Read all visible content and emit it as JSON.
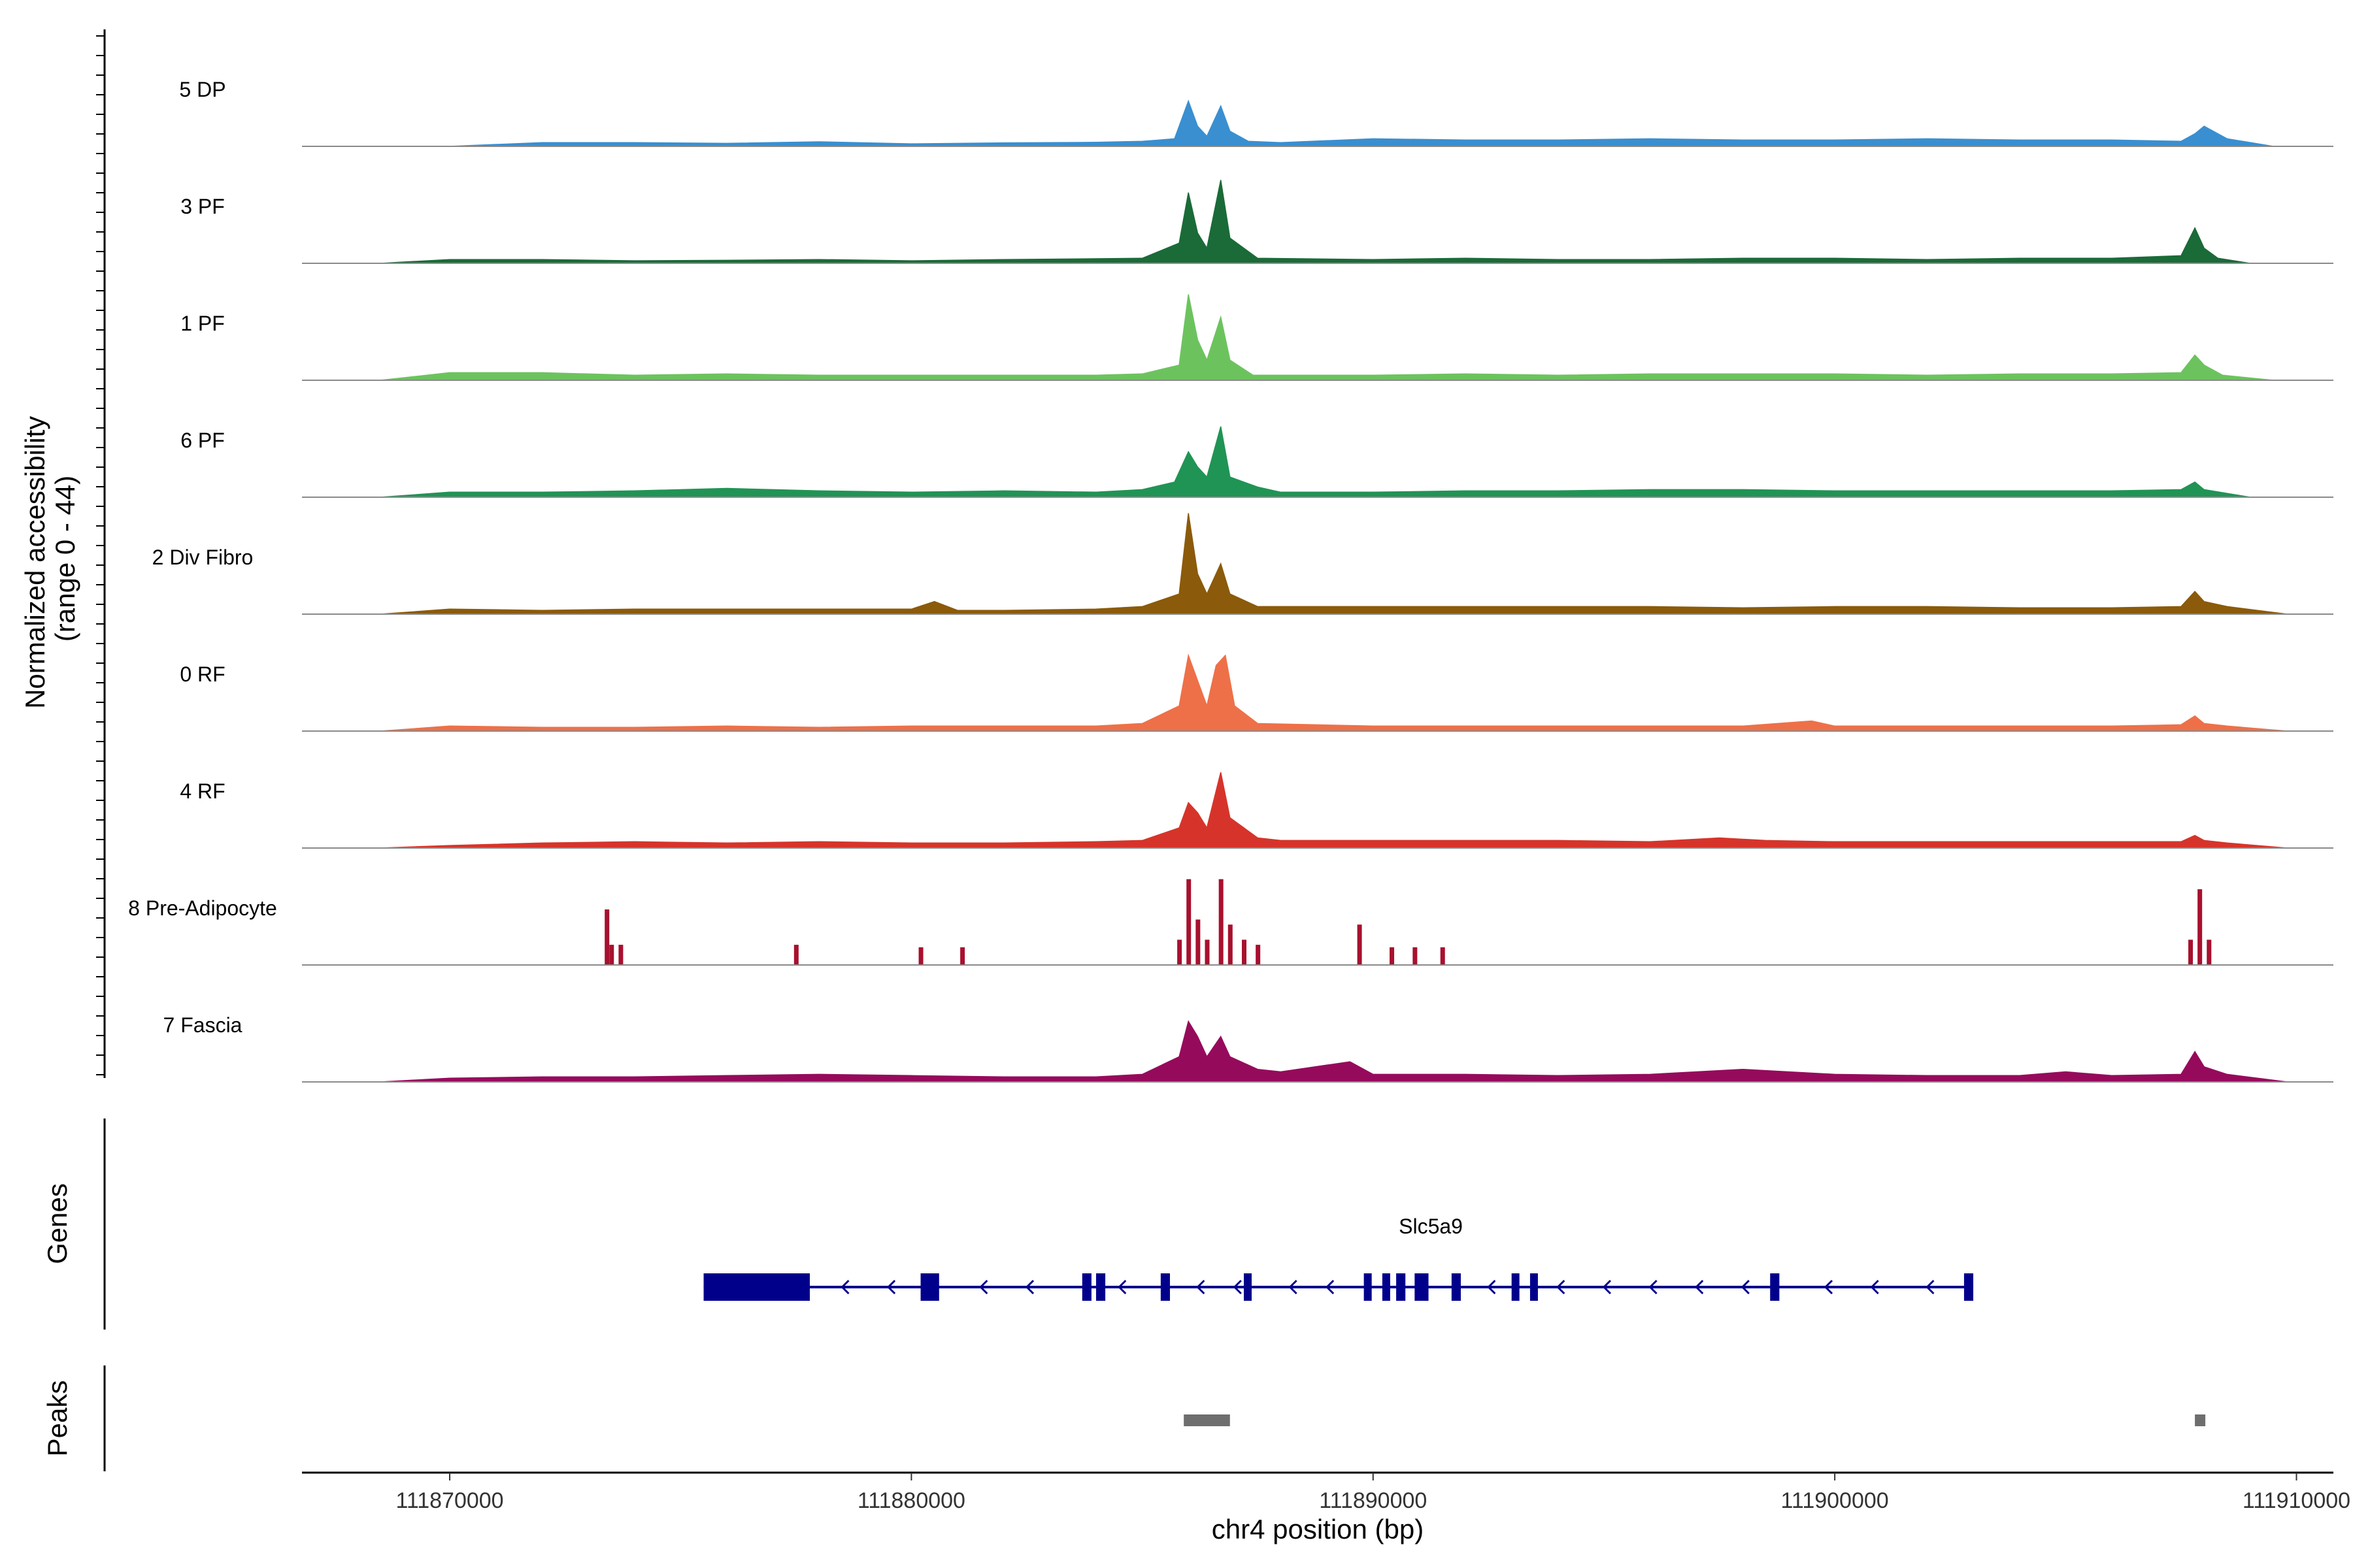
{
  "chart_data": {
    "type": "area",
    "title": "",
    "xlabel": "chr4 position (bp)",
    "ylabel": "Normalized accessibility",
    "ylabel_range": "(range 0 - 44)",
    "ylim": [
      0,
      44
    ],
    "xlim": [
      111866800,
      111910800
    ],
    "x_ticks": [
      111870000,
      111880000,
      111890000,
      111900000,
      111910000
    ],
    "x_tick_labels": [
      "111870000",
      "111880000",
      "111890000",
      "111900000",
      "111910000"
    ],
    "series": [
      {
        "name": "5 DP",
        "color": "#3a8fd0",
        "x": [
          111870000,
          111872000,
          111874000,
          111876000,
          111878000,
          111880000,
          111882000,
          111884000,
          111885000,
          111885700,
          111886000,
          111886200,
          111886400,
          111886700,
          111886900,
          111887300,
          111888000,
          111890000,
          111892000,
          111894000,
          111896000,
          111898000,
          111900000,
          111902000,
          111904000,
          111906000,
          111907500,
          111907800,
          111908000,
          111908500,
          111909500
        ],
        "values": [
          0,
          1.5,
          1.5,
          1.2,
          1.8,
          1,
          1.4,
          1.6,
          2,
          3,
          18,
          8,
          4,
          16,
          6,
          2,
          1.5,
          3,
          2.5,
          2.5,
          3,
          2.5,
          2.5,
          3,
          2.5,
          2.5,
          2,
          5,
          8,
          3,
          0
        ]
      },
      {
        "name": "3 PF",
        "color": "#1a6b38",
        "x": [
          111868500,
          111870000,
          111872000,
          111874000,
          111876000,
          111878000,
          111880000,
          111882000,
          111884000,
          111885000,
          111885800,
          111886000,
          111886200,
          111886400,
          111886700,
          111886900,
          111887500,
          111890000,
          111892000,
          111894000,
          111896000,
          111898000,
          111900000,
          111902000,
          111904000,
          111906000,
          111907500,
          111907800,
          111908000,
          111908300,
          111909000
        ],
        "values": [
          0,
          1.5,
          1.5,
          1,
          1.2,
          1.5,
          1,
          1.5,
          1.8,
          2,
          8,
          28,
          12,
          6,
          33,
          10,
          2,
          1.5,
          2,
          1.5,
          1.5,
          2,
          2,
          1.5,
          2,
          2,
          3,
          14,
          6,
          2,
          0
        ]
      },
      {
        "name": "1 PF",
        "color": "#6cc35e",
        "x": [
          111868500,
          111870000,
          111872000,
          111874000,
          111876000,
          111878000,
          111880000,
          111882000,
          111884000,
          111885000,
          111885800,
          111886000,
          111886200,
          111886400,
          111886700,
          111886900,
          111887400,
          111890000,
          111892000,
          111894000,
          111896000,
          111898000,
          111900000,
          111902000,
          111904000,
          111906000,
          111907500,
          111907800,
          111908000,
          111908400,
          111909500
        ],
        "values": [
          0,
          3,
          3,
          2,
          2.5,
          2,
          2,
          2,
          2,
          2.5,
          6,
          34,
          16,
          8,
          25,
          8,
          2,
          2,
          2.5,
          2,
          2.5,
          2.5,
          2.5,
          2,
          2.5,
          2.5,
          3,
          10,
          6,
          2,
          0
        ]
      },
      {
        "name": "6 PF",
        "color": "#209454",
        "x": [
          111868500,
          111870000,
          111872000,
          111874000,
          111876000,
          111878000,
          111880000,
          111882000,
          111884000,
          111885000,
          111885700,
          111886000,
          111886200,
          111886400,
          111886700,
          111886900,
          111887500,
          111888000,
          111890000,
          111892000,
          111894000,
          111896000,
          111898000,
          111900000,
          111902000,
          111904000,
          111906000,
          111907500,
          111907800,
          111908000,
          111909000
        ],
        "values": [
          0,
          2,
          2,
          2.5,
          3.5,
          2.5,
          2,
          2.5,
          2,
          3,
          6,
          18,
          12,
          8,
          28,
          8,
          4,
          2,
          2,
          2.5,
          2.5,
          3,
          3,
          2.5,
          2.5,
          2.5,
          2.5,
          3,
          6,
          3,
          0
        ]
      },
      {
        "name": "2 Div Fibro",
        "color": "#8b5a0a",
        "x": [
          111868500,
          111870000,
          111872000,
          111874000,
          111876000,
          111878000,
          111880000,
          111880500,
          111881000,
          111882000,
          111884000,
          111885000,
          111885800,
          111886000,
          111886200,
          111886400,
          111886700,
          111886900,
          111887500,
          111890000,
          111892000,
          111894000,
          111896000,
          111898000,
          111900000,
          111902000,
          111904000,
          111906000,
          111907500,
          111907800,
          111908000,
          111908500,
          111909800
        ],
        "values": [
          0,
          2,
          1.5,
          2,
          2,
          2,
          2,
          5,
          1.5,
          1.5,
          2,
          3,
          8,
          40,
          16,
          8,
          20,
          8,
          3,
          3,
          3,
          3,
          3,
          2.5,
          3,
          3,
          2.5,
          2.5,
          3,
          9,
          5,
          3,
          0
        ]
      },
      {
        "name": "0 RF",
        "color": "#ee7048",
        "x": [
          111868500,
          111870000,
          111872000,
          111874000,
          111876000,
          111878000,
          111880000,
          111882000,
          111884000,
          111885000,
          111885800,
          111886000,
          111886200,
          111886400,
          111886600,
          111886800,
          111887000,
          111887500,
          111890000,
          111892000,
          111894000,
          111896000,
          111898000,
          111899500,
          111900000,
          111902000,
          111904000,
          111906000,
          111907500,
          111907800,
          111908000,
          111908500,
          111909800
        ],
        "values": [
          0,
          2,
          1.5,
          1.5,
          2,
          1.5,
          2,
          2,
          2,
          3,
          10,
          30,
          20,
          10,
          26,
          30,
          10,
          3,
          2,
          2,
          2,
          2,
          2,
          4,
          2,
          2,
          2,
          2,
          2.5,
          6,
          3,
          2,
          0
        ]
      },
      {
        "name": "4 RF",
        "color": "#d6342a",
        "x": [
          111868500,
          111870000,
          111872000,
          111874000,
          111876000,
          111878000,
          111880000,
          111882000,
          111884000,
          111885000,
          111885800,
          111886000,
          111886200,
          111886400,
          111886700,
          111886900,
          111887500,
          111888000,
          111890000,
          111892000,
          111894000,
          111896000,
          111897500,
          111898500,
          111900000,
          111902000,
          111904000,
          111906000,
          111907500,
          111907800,
          111908000,
          111908500,
          111909800
        ],
        "values": [
          0,
          1,
          2,
          2.5,
          2,
          2.5,
          2,
          2,
          2.5,
          3,
          8,
          18,
          14,
          8,
          30,
          12,
          4,
          3,
          3,
          3,
          3,
          2.5,
          4,
          3,
          2.5,
          2.5,
          2.5,
          2.5,
          2.5,
          5,
          3,
          2,
          0
        ]
      },
      {
        "name": "8 Pre-Adipocyte",
        "color": "#a8102e",
        "x": [
          111873400,
          111873500,
          111873700,
          111877500,
          111880200,
          111881100,
          111885800,
          111886000,
          111886200,
          111886400,
          111886700,
          111886900,
          111887200,
          111887500,
          111889700,
          111890400,
          111890900,
          111891500,
          111907700,
          111907900,
          111908100
        ],
        "values": [
          22,
          8,
          8,
          8,
          7,
          7,
          10,
          34,
          18,
          10,
          34,
          16,
          10,
          8,
          16,
          7,
          7,
          7,
          10,
          30,
          10
        ]
      },
      {
        "name": "7 Fascia",
        "color": "#960a5c",
        "x": [
          111868500,
          111870000,
          111872000,
          111874000,
          111876000,
          111878000,
          111880000,
          111882000,
          111884000,
          111885000,
          111885800,
          111886000,
          111886200,
          111886400,
          111886700,
          111886900,
          111887500,
          111888000,
          111889500,
          111890000,
          111892000,
          111894000,
          111896000,
          111898000,
          111900000,
          111902000,
          111904000,
          111905000,
          111906000,
          111907500,
          111907800,
          111908000,
          111908500,
          111909800
        ],
        "values": [
          0,
          1.5,
          2,
          2,
          2.5,
          3,
          2.5,
          2,
          2,
          3,
          10,
          24,
          18,
          10,
          18,
          10,
          5,
          4,
          8,
          3,
          3,
          2.5,
          3,
          5,
          3,
          2.5,
          2.5,
          4,
          2.5,
          3,
          12,
          6,
          3,
          0
        ]
      }
    ],
    "genes": {
      "title": "Genes",
      "name": "Slc5a9",
      "color": "#00008b",
      "strand": "-",
      "start": 111875500,
      "end": 111903000,
      "exons": [
        [
          111875500,
          111877800
        ],
        [
          111880200,
          111880600
        ],
        [
          111883700,
          111883900
        ],
        [
          111884000,
          111884200
        ],
        [
          111885400,
          111885600
        ],
        [
          111887200,
          111887350
        ],
        [
          111889800,
          111889950
        ],
        [
          111890200,
          111890350
        ],
        [
          111890500,
          111890700
        ],
        [
          111890900,
          111891200
        ],
        [
          111891700,
          111891900
        ],
        [
          111893000,
          111893150
        ],
        [
          111893400,
          111893500
        ],
        [
          111898600,
          111898800
        ],
        [
          111902800,
          111903000
        ]
      ],
      "arrow_positions": [
        111878500,
        111879500,
        111881500,
        111882500,
        111884500,
        111886200,
        111887000,
        111888200,
        111889000,
        111892500,
        111894000,
        111895000,
        111896000,
        111897000,
        111898000,
        111899800,
        111900800,
        111902000
      ]
    },
    "peaks": {
      "title": "Peaks",
      "color": "#6e6e6e",
      "regions": [
        [
          111885900,
          111886900
        ],
        [
          111907800,
          111908000
        ]
      ]
    }
  }
}
